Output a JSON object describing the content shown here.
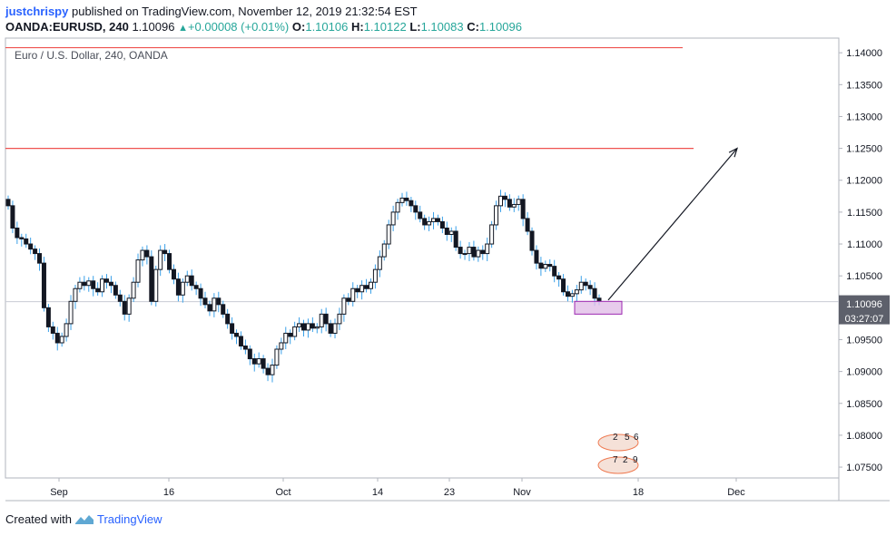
{
  "header": {
    "user": "justchrispy",
    "published": "published on TradingView.com, November 12, 2019 21:32:54 EST"
  },
  "symbol_bar": {
    "symbol": "OANDA:EURUSD, 240",
    "last": "1.10096",
    "change": "+0.00008 (+0.01%)",
    "o_label": "O:",
    "o": "1.10106",
    "h_label": "H:",
    "h": "1.10122",
    "l_label": "L:",
    "l": "1.10083",
    "c_label": "C:",
    "c": "1.10096"
  },
  "footer": {
    "created_with": "Created with",
    "brand": "TradingView"
  },
  "colors": {
    "candle_body": "#131722",
    "wick": "#3aa0e8",
    "hline": "#ef5350",
    "box_fill": "#e1bee7",
    "box_stroke": "#9c27b0",
    "price_tag": "#5d606b"
  },
  "chart_data": {
    "type": "candlestick",
    "title": "Euro / U.S. Dollar, 240, OANDA",
    "ylim": [
      1.0733,
      1.1423
    ],
    "y_ticks": [
      "1.14000",
      "1.13500",
      "1.13000",
      "1.12500",
      "1.12000",
      "1.11500",
      "1.11000",
      "1.10500",
      "1.10000",
      "1.09500",
      "1.09000",
      "1.08500",
      "1.08000",
      "1.07500"
    ],
    "x_labels": [
      "Sep",
      "16",
      "Oct",
      "14",
      "23",
      "Nov",
      "18",
      "Dec"
    ],
    "last_price": "1.10096",
    "countdown": "03:27:07",
    "horizontal_lines": [
      1.1408,
      1.125
    ],
    "close_series": [
      1.116,
      1.1125,
      1.111,
      1.1108,
      1.11,
      1.1092,
      1.1085,
      1.107,
      1.1,
      1.097,
      1.096,
      1.0945,
      1.0955,
      1.0975,
      1.101,
      1.103,
      1.104,
      1.1035,
      1.1042,
      1.103,
      1.1025,
      1.1045,
      1.104,
      1.1035,
      1.102,
      1.101,
      1.099,
      1.1015,
      1.104,
      1.1075,
      1.109,
      1.108,
      1.101,
      1.106,
      1.109,
      1.1085,
      1.106,
      1.1045,
      1.102,
      1.104,
      1.105,
      1.1035,
      1.103,
      1.1015,
      1.1005,
      1.0995,
      1.1015,
      1.1005,
      1.099,
      1.0975,
      1.096,
      1.0955,
      1.094,
      1.0935,
      1.092,
      1.0912,
      1.092,
      1.0905,
      1.0895,
      1.091,
      1.0935,
      1.0945,
      1.096,
      1.0955,
      1.097,
      1.0975,
      1.0965,
      1.0975,
      1.0968,
      1.097,
      1.099,
      1.0975,
      1.096,
      1.0975,
      1.099,
      1.1015,
      1.101,
      1.103,
      1.1025,
      1.1035,
      1.103,
      1.104,
      1.106,
      1.108,
      1.11,
      1.113,
      1.115,
      1.1165,
      1.1172,
      1.1168,
      1.116,
      1.115,
      1.114,
      1.113,
      1.1135,
      1.114,
      1.1135,
      1.1125,
      1.1115,
      1.112,
      1.1095,
      1.1085,
      1.1085,
      1.1095,
      1.108,
      1.109,
      1.1085,
      1.11,
      1.113,
      1.116,
      1.1175,
      1.117,
      1.1158,
      1.1162,
      1.117,
      1.114,
      1.112,
      1.109,
      1.107,
      1.1062,
      1.1068,
      1.1065,
      1.105,
      1.1045,
      1.1025,
      1.1018,
      1.1022,
      1.1028,
      1.104,
      1.1035,
      1.103,
      1.1015,
      1.101
    ],
    "projection_arrow": {
      "from": [
        "Nov 13",
        1.1012
      ],
      "to": [
        "Nov 27",
        1.125
      ]
    },
    "zone_box": {
      "x_from": "Nov 10",
      "x_to": "Nov 14",
      "y_top": 1.101,
      "y_bottom": 1.099
    }
  }
}
